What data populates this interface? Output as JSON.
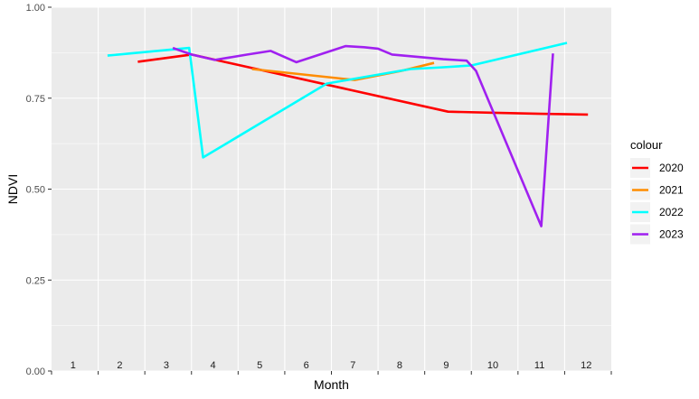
{
  "chart_data": {
    "type": "line",
    "xlabel": "Month",
    "ylabel": "NDVI",
    "x_tick_labels": [
      "1",
      "2",
      "3",
      "4",
      "5",
      "6",
      "7",
      "8",
      "9",
      "10",
      "11",
      "12"
    ],
    "y_tick_labels": [
      "0.00",
      "0.25",
      "0.50",
      "0.75",
      "1.00"
    ],
    "ylim": [
      0,
      1
    ],
    "xlim": [
      0.5,
      12.5
    ],
    "grid": true,
    "legend_title": "colour",
    "legend_position": "right",
    "series": [
      {
        "name": "2020",
        "color": "#ff0000",
        "points": [
          [
            2.35,
            0.85
          ],
          [
            3.5,
            0.87
          ],
          [
            9.0,
            0.713
          ],
          [
            10.0,
            0.71
          ],
          [
            11.0,
            0.707
          ],
          [
            12.0,
            0.705
          ]
        ]
      },
      {
        "name": "2021",
        "color": "#ff8c00",
        "points": [
          [
            4.8,
            0.83
          ],
          [
            7.0,
            0.8
          ],
          [
            8.0,
            0.825
          ],
          [
            8.7,
            0.847
          ]
        ]
      },
      {
        "name": "2022",
        "color": "#00ffff",
        "points": [
          [
            1.7,
            0.867
          ],
          [
            3.45,
            0.888
          ],
          [
            3.75,
            0.587
          ],
          [
            6.4,
            0.79
          ],
          [
            7.2,
            0.808
          ],
          [
            8.2,
            0.83
          ],
          [
            8.9,
            0.835
          ],
          [
            9.5,
            0.84
          ],
          [
            11.55,
            0.902
          ]
        ]
      },
      {
        "name": "2023",
        "color": "#a020f0",
        "points": [
          [
            3.1,
            0.888
          ],
          [
            3.5,
            0.87
          ],
          [
            4.0,
            0.855
          ],
          [
            4.7,
            0.87
          ],
          [
            5.2,
            0.88
          ],
          [
            5.75,
            0.849
          ],
          [
            6.8,
            0.893
          ],
          [
            7.2,
            0.89
          ],
          [
            7.5,
            0.886
          ],
          [
            7.8,
            0.87
          ],
          [
            8.9,
            0.857
          ],
          [
            9.4,
            0.853
          ],
          [
            9.6,
            0.825
          ],
          [
            11.0,
            0.398
          ],
          [
            11.25,
            0.873
          ]
        ]
      }
    ]
  }
}
